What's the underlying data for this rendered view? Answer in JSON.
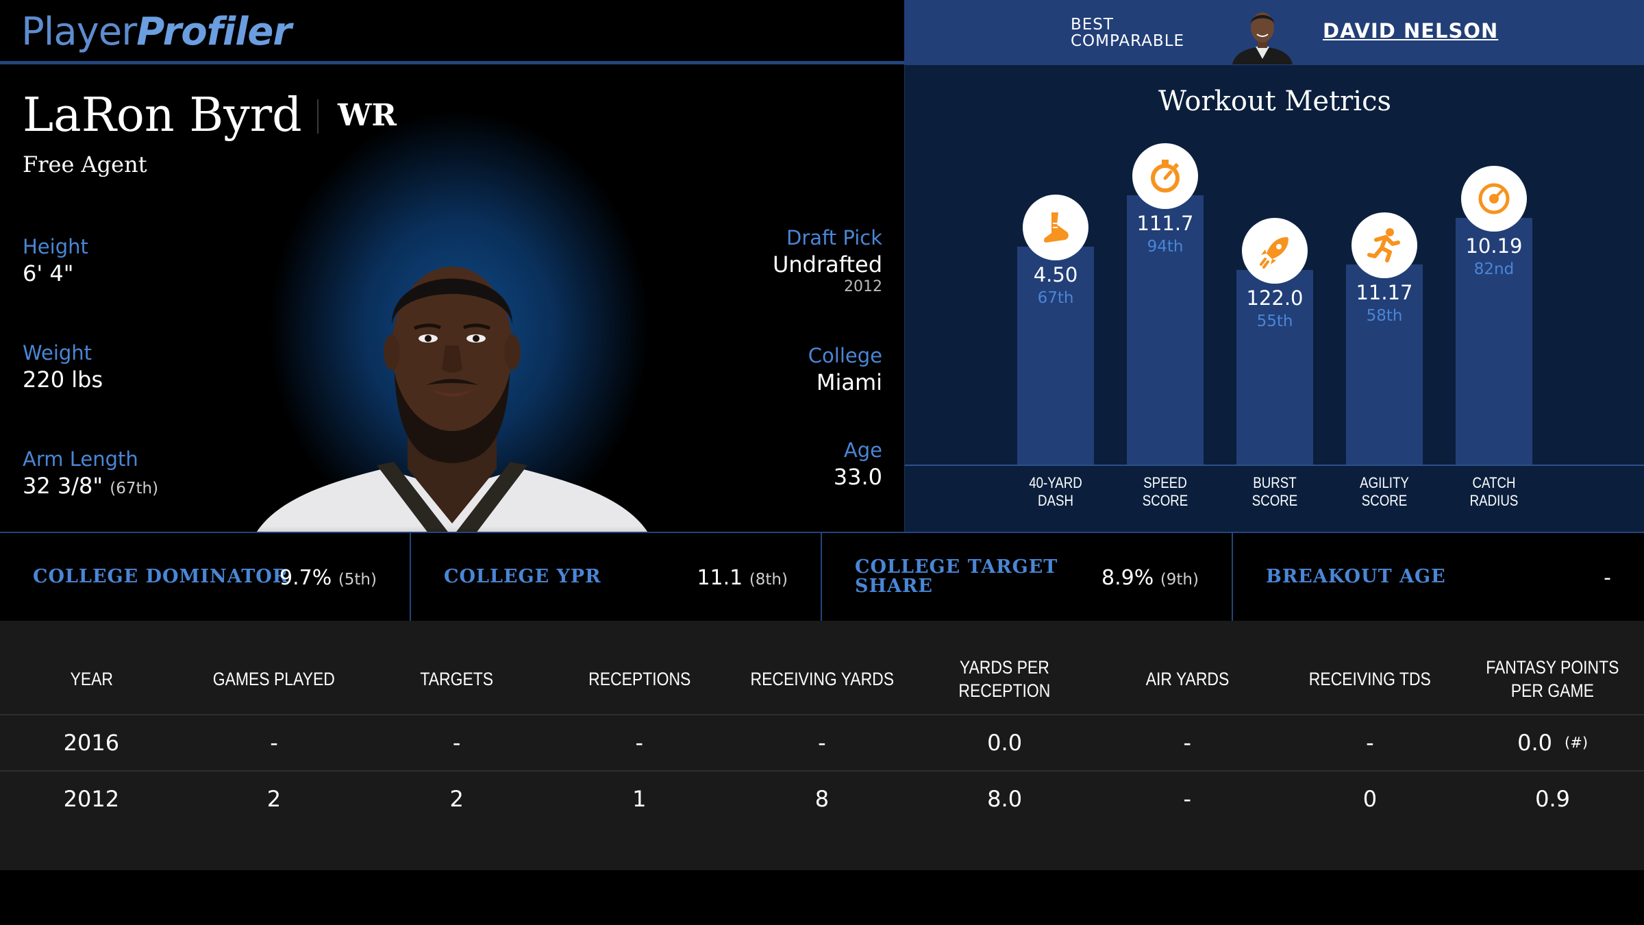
{
  "brand": {
    "part1": "Player",
    "part2": "Profiler"
  },
  "comparable": {
    "label_line1": "BEST",
    "label_line2": "COMPARABLE",
    "name": "DAVID NELSON"
  },
  "player": {
    "name": "LaRon Byrd",
    "position": "WR",
    "team": "Free Agent",
    "height": {
      "label": "Height",
      "value": "6' 4\""
    },
    "weight": {
      "label": "Weight",
      "value": "220 lbs"
    },
    "arm_length": {
      "label": "Arm Length",
      "value": "32 3/8\"",
      "rank": "(67th)"
    },
    "draft_pick": {
      "label": "Draft Pick",
      "value": "Undrafted",
      "year": "2012"
    },
    "college": {
      "label": "College",
      "value": "Miami"
    },
    "age": {
      "label": "Age",
      "value": "33.0"
    }
  },
  "workout": {
    "title": "Workout Metrics",
    "metrics": [
      {
        "label_line1": "40-YARD",
        "label_line2": "DASH",
        "value": "4.50",
        "percentile": "67th",
        "pct_num": 67,
        "icon": "running-shoe-icon"
      },
      {
        "label_line1": "SPEED",
        "label_line2": "SCORE",
        "value": "111.7",
        "percentile": "94th",
        "pct_num": 94,
        "icon": "stopwatch-icon"
      },
      {
        "label_line1": "BURST",
        "label_line2": "SCORE",
        "value": "122.0",
        "percentile": "55th",
        "pct_num": 55,
        "icon": "rocket-icon"
      },
      {
        "label_line1": "AGILITY",
        "label_line2": "SCORE",
        "value": "11.17",
        "percentile": "58th",
        "pct_num": 58,
        "icon": "runner-icon"
      },
      {
        "label_line1": "CATCH",
        "label_line2": "RADIUS",
        "value": "10.19",
        "percentile": "82nd",
        "pct_num": 82,
        "icon": "target-icon"
      }
    ]
  },
  "college_stats": [
    {
      "label_line1": "COLLEGE DOMINATOR",
      "label_line2": "",
      "value": "9.7%",
      "rank": "(5th)"
    },
    {
      "label_line1": "COLLEGE YPR",
      "label_line2": "",
      "value": "11.1",
      "rank": "(8th)"
    },
    {
      "label_line1": "COLLEGE TARGET",
      "label_line2": "SHARE",
      "value": "8.9%",
      "rank": "(9th)"
    },
    {
      "label_line1": "BREAKOUT AGE",
      "label_line2": "",
      "value": "-",
      "rank": ""
    }
  ],
  "table": {
    "headers": [
      "YEAR",
      "GAMES PLAYED",
      "TARGETS",
      "RECEPTIONS",
      "RECEIVING YARDS",
      "YARDS PER RECEPTION",
      "AIR YARDS",
      "RECEIVING TDS",
      "FANTASY POINTS PER GAME"
    ],
    "rows": [
      {
        "cells": [
          "2016",
          "-",
          "-",
          "-",
          "-",
          "0.0",
          "-",
          "-",
          "0.0"
        ],
        "note": "(#)"
      },
      {
        "cells": [
          "2012",
          "2",
          "2",
          "1",
          "8",
          "8.0",
          "-",
          "0",
          "0.9"
        ],
        "note": ""
      }
    ]
  },
  "colors": {
    "accent": "#4a86d6",
    "bar": "#223f78",
    "panel": "#0b1f3d",
    "icon": "#f7931e"
  }
}
